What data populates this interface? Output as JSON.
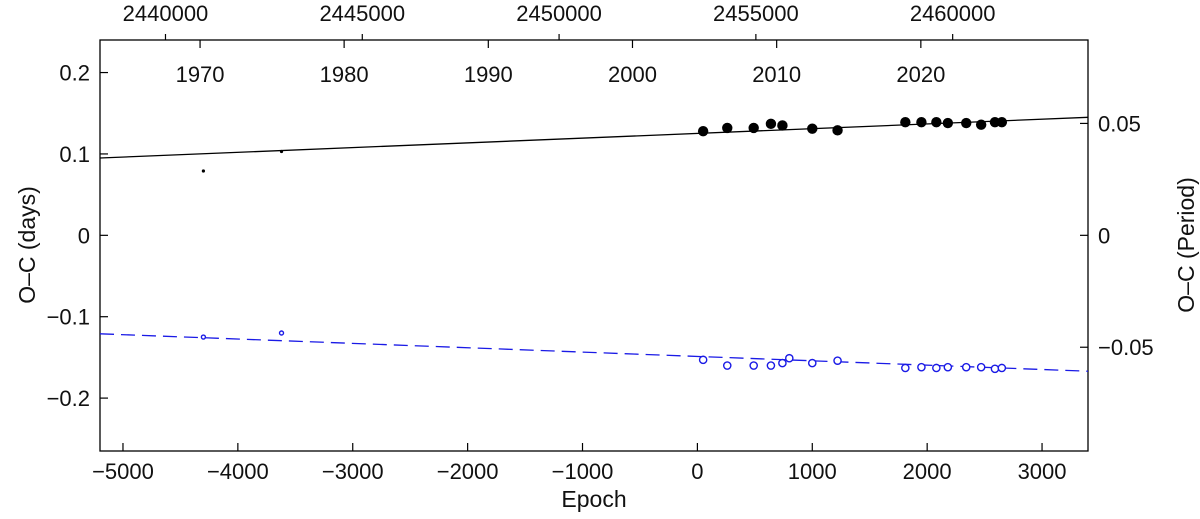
{
  "chart_data": {
    "type": "scatter",
    "xlabel": "Epoch",
    "ylabel_left": "O–C (days)",
    "ylabel_right": "O–C (Period)",
    "xlim": [
      -5200,
      3400
    ],
    "ylim": [
      -0.265,
      0.24
    ],
    "grid": false,
    "x_ticks": [
      -5000,
      -4000,
      -3000,
      -2000,
      -1000,
      0,
      1000,
      2000,
      3000
    ],
    "x_tick_labels": [
      "−5000",
      "−4000",
      "−3000",
      "−2000",
      "−1000",
      "0",
      "1000",
      "2000",
      "3000"
    ],
    "y_ticks": [
      0.2,
      0.1,
      0,
      -0.1,
      -0.2
    ],
    "y_tick_labels": [
      "0.2",
      "0.1",
      "0",
      "−0.1",
      "−0.2"
    ],
    "right_ticks": [
      0.05,
      0,
      -0.05
    ],
    "right_tick_labels": [
      "0.05",
      "0",
      "−0.05"
    ],
    "right_to_left_scale": 2.75,
    "top_year_ticks": [
      1970,
      1980,
      1990,
      2000,
      2010,
      2020
    ],
    "top_year_epochs": [
      -4329,
      -3075,
      -1820,
      -565,
      690,
      1945
    ],
    "top_jd_ticks": [
      2440000,
      2445000,
      2450000,
      2455000,
      2460000
    ],
    "top_jd_epochs": [
      -4630,
      -2917,
      -1204,
      509,
      2222
    ],
    "series": [
      {
        "color": "#000000",
        "marker": "filled-circle",
        "fit_line": "solid",
        "fit_endpoints": [
          [
            -5200,
            0.095
          ],
          [
            3400,
            0.145
          ]
        ],
        "points": [
          {
            "x": -4300,
            "y": 0.079,
            "size": "tiny"
          },
          {
            "x": -3620,
            "y": 0.103,
            "size": "tiny"
          },
          {
            "x": 50,
            "y": 0.128
          },
          {
            "x": 260,
            "y": 0.132
          },
          {
            "x": 490,
            "y": 0.132
          },
          {
            "x": 640,
            "y": 0.137
          },
          {
            "x": 740,
            "y": 0.135
          },
          {
            "x": 1000,
            "y": 0.131
          },
          {
            "x": 1220,
            "y": 0.129
          },
          {
            "x": 1810,
            "y": 0.139
          },
          {
            "x": 1950,
            "y": 0.139
          },
          {
            "x": 2080,
            "y": 0.139
          },
          {
            "x": 2180,
            "y": 0.138
          },
          {
            "x": 2340,
            "y": 0.138
          },
          {
            "x": 2470,
            "y": 0.136
          },
          {
            "x": 2590,
            "y": 0.139
          },
          {
            "x": 2650,
            "y": 0.139
          }
        ]
      },
      {
        "color": "#1a1ae6",
        "marker": "open-circle",
        "fit_line": "dashed",
        "fit_endpoints": [
          [
            -5200,
            -0.121
          ],
          [
            3400,
            -0.167
          ]
        ],
        "points": [
          {
            "x": -4300,
            "y": -0.125,
            "size": "tiny"
          },
          {
            "x": -3620,
            "y": -0.12,
            "size": "tiny"
          },
          {
            "x": 50,
            "y": -0.153
          },
          {
            "x": 260,
            "y": -0.16
          },
          {
            "x": 490,
            "y": -0.16
          },
          {
            "x": 640,
            "y": -0.16
          },
          {
            "x": 740,
            "y": -0.157
          },
          {
            "x": 800,
            "y": -0.151
          },
          {
            "x": 1000,
            "y": -0.157
          },
          {
            "x": 1220,
            "y": -0.154
          },
          {
            "x": 1810,
            "y": -0.163
          },
          {
            "x": 1950,
            "y": -0.162
          },
          {
            "x": 2080,
            "y": -0.163
          },
          {
            "x": 2180,
            "y": -0.162
          },
          {
            "x": 2340,
            "y": -0.162
          },
          {
            "x": 2470,
            "y": -0.162
          },
          {
            "x": 2590,
            "y": -0.164
          },
          {
            "x": 2650,
            "y": -0.163
          }
        ]
      }
    ]
  }
}
